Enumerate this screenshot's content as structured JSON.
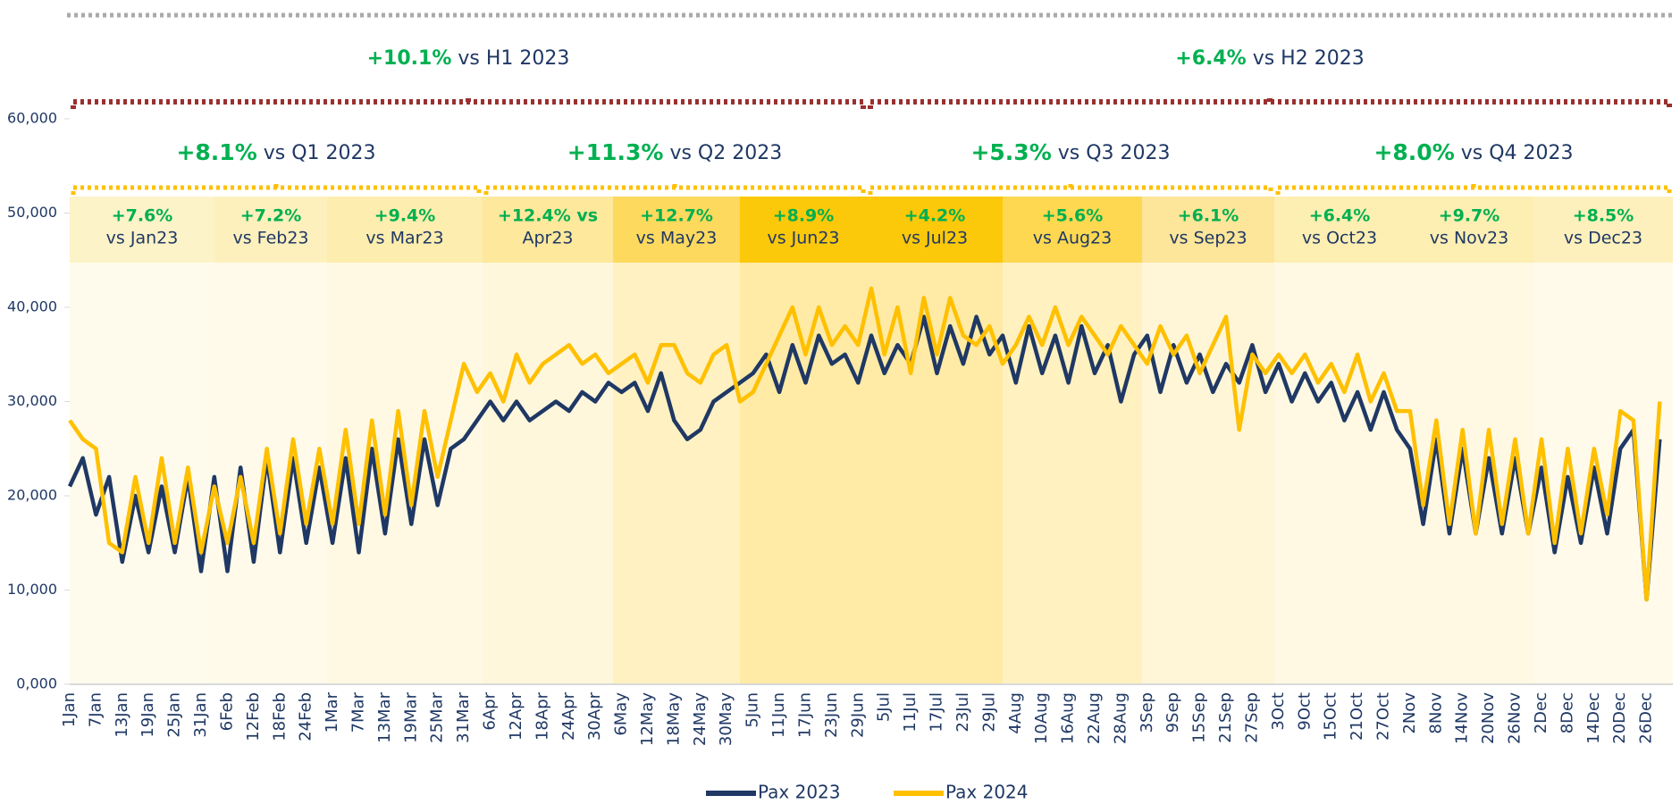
{
  "chart_data": {
    "type": "line",
    "categories": [
      "1Jan",
      null,
      "7Jan",
      null,
      "13Jan",
      null,
      "19Jan",
      null,
      "25Jan",
      null,
      "31Jan",
      null,
      "6Feb",
      null,
      "12Feb",
      null,
      "18Feb",
      null,
      "24Feb",
      null,
      "1Mar",
      null,
      "7Mar",
      null,
      "13Mar",
      null,
      "19Mar",
      null,
      "25Mar",
      null,
      "31Mar",
      null,
      "6Apr",
      null,
      "12Apr",
      null,
      "18Apr",
      null,
      "24Apr",
      null,
      "30Apr",
      null,
      "6May",
      null,
      "12May",
      null,
      "18May",
      null,
      "24May",
      null,
      "30May",
      null,
      "5Jun",
      null,
      "11Jun",
      null,
      "17Jun",
      null,
      "23Jun",
      null,
      "29Jun",
      null,
      "5Jul",
      null,
      "11Jul",
      null,
      "17Jul",
      null,
      "23Jul",
      null,
      "29Jul",
      null,
      "4Aug",
      null,
      "10Aug",
      null,
      "16Aug",
      null,
      "22Aug",
      null,
      "28Aug",
      null,
      "3Sep",
      null,
      "9Sep",
      null,
      "15Sep",
      null,
      "21Sep",
      null,
      "27Sep",
      null,
      "3Oct",
      null,
      "9Oct",
      null,
      "15Oct",
      null,
      "21Oct",
      null,
      "27Oct",
      null,
      "2Nov",
      null,
      "8Nov",
      null,
      "14Nov",
      null,
      "20Nov",
      null,
      "26Nov",
      null,
      "2Dec",
      null,
      "8Dec",
      null,
      "14Dec",
      null,
      "20Dec",
      null,
      "26Dec",
      null
    ],
    "series": [
      {
        "name": "Pax 2023",
        "color": "#1f3864",
        "values": [
          21000,
          24000,
          18000,
          22000,
          13000,
          20000,
          14000,
          21000,
          14000,
          22000,
          12000,
          22000,
          12000,
          23000,
          13000,
          24000,
          14000,
          24000,
          15000,
          23000,
          15000,
          24000,
          14000,
          25000,
          16000,
          26000,
          17000,
          26000,
          19000,
          25000,
          26000,
          28000,
          30000,
          28000,
          30000,
          28000,
          29000,
          30000,
          29000,
          31000,
          30000,
          32000,
          31000,
          32000,
          29000,
          33000,
          28000,
          26000,
          27000,
          30000,
          31000,
          32000,
          33000,
          35000,
          31000,
          36000,
          32000,
          37000,
          34000,
          35000,
          32000,
          37000,
          33000,
          36000,
          34000,
          39000,
          33000,
          38000,
          34000,
          39000,
          35000,
          37000,
          32000,
          38000,
          33000,
          37000,
          32000,
          38000,
          33000,
          36000,
          30000,
          35000,
          37000,
          31000,
          36000,
          32000,
          35000,
          31000,
          34000,
          32000,
          36000,
          31000,
          34000,
          30000,
          33000,
          30000,
          32000,
          28000,
          31000,
          27000,
          31000,
          27000,
          25000,
          17000,
          26000,
          16000,
          25000,
          16000,
          24000,
          16000,
          24000,
          16000,
          23000,
          14000,
          22000,
          15000,
          23000,
          16000,
          25000,
          27000,
          9000,
          26000
        ]
      },
      {
        "name": "Pax 2024",
        "color": "#ffc000",
        "values": [
          28000,
          26000,
          25000,
          15000,
          14000,
          22000,
          15000,
          24000,
          15000,
          23000,
          14000,
          21000,
          15000,
          22000,
          15000,
          25000,
          16000,
          26000,
          17000,
          25000,
          17000,
          27000,
          17000,
          28000,
          18000,
          29000,
          19000,
          29000,
          22000,
          28000,
          34000,
          31000,
          33000,
          30000,
          35000,
          32000,
          34000,
          35000,
          36000,
          34000,
          35000,
          33000,
          34000,
          35000,
          32000,
          36000,
          36000,
          33000,
          32000,
          35000,
          36000,
          30000,
          31000,
          34000,
          37000,
          40000,
          35000,
          40000,
          36000,
          38000,
          36000,
          42000,
          35000,
          40000,
          33000,
          41000,
          35000,
          41000,
          37000,
          36000,
          38000,
          34000,
          36000,
          39000,
          36000,
          40000,
          36000,
          39000,
          37000,
          35000,
          38000,
          36000,
          34000,
          38000,
          35000,
          37000,
          33000,
          36000,
          39000,
          27000,
          35000,
          33000,
          35000,
          33000,
          35000,
          32000,
          34000,
          31000,
          35000,
          30000,
          33000,
          29000,
          29000,
          19000,
          28000,
          17000,
          27000,
          16000,
          27000,
          17000,
          26000,
          16000,
          26000,
          15000,
          25000,
          16000,
          25000,
          18000,
          29000,
          28000,
          9000,
          30000
        ]
      }
    ],
    "ylim": [
      0,
      60000
    ],
    "yticks": [
      {
        "value": 0,
        "label": "0,000"
      },
      {
        "value": 10000,
        "label": "10,000"
      },
      {
        "value": 20000,
        "label": "20,000"
      },
      {
        "value": 30000,
        "label": "30,000"
      },
      {
        "value": 40000,
        "label": "40,000"
      },
      {
        "value": 50000,
        "label": "50,000"
      },
      {
        "value": 60000,
        "label": "60,000"
      }
    ],
    "legend": "bottom",
    "months": [
      {
        "pct": "+7.6%",
        "text": "vs Jan23"
      },
      {
        "pct": "+7.2%",
        "text": "vs Feb23"
      },
      {
        "pct": "+9.4%",
        "text": "vs Mar23"
      },
      {
        "pct": "+12.4% vs",
        "text": "Apr23"
      },
      {
        "pct": "+12.7%",
        "text": "vs May23"
      },
      {
        "pct": "+8.9%",
        "text": "vs Jun23"
      },
      {
        "pct": "+4.2%",
        "text": "vs Jul23"
      },
      {
        "pct": "+5.6%",
        "text": "vs Aug23"
      },
      {
        "pct": "+6.1%",
        "text": "vs Sep23"
      },
      {
        "pct": "+6.4%",
        "text": "vs Oct23"
      },
      {
        "pct": "+9.7%",
        "text": "vs Nov23"
      },
      {
        "pct": "+8.5%",
        "text": "vs Dec23"
      }
    ],
    "quarters": [
      {
        "pct": "+8.1%",
        "text": " vs Q1 2023"
      },
      {
        "pct": "+11.3%",
        "text": " vs Q2 2023"
      },
      {
        "pct": "+5.3%",
        "text": " vs Q3 2023"
      },
      {
        "pct": "+8.0%",
        "text": " vs Q4 2023"
      }
    ],
    "halves": [
      {
        "pct": "+10.1%",
        "text": " vs H1 2023"
      },
      {
        "pct": "+6.4%",
        "text": " vs H2 2023"
      }
    ]
  }
}
